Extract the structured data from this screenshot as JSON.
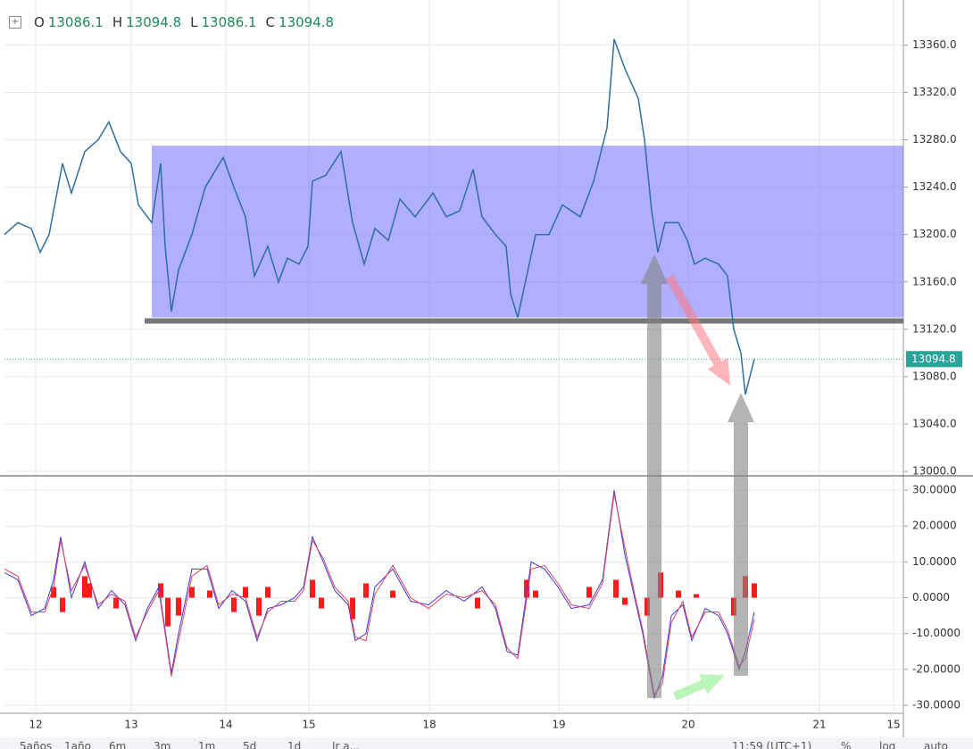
{
  "header": {
    "items": [
      {
        "key": "O",
        "value": "13086.1"
      },
      {
        "key": "H",
        "value": "13094.8"
      },
      {
        "key": "L",
        "value": "13086.1"
      },
      {
        "key": "C",
        "value": "13094.8"
      }
    ]
  },
  "toolbar": {
    "left": [
      "5años",
      "1año",
      "6m",
      "3m",
      "1m",
      "5d",
      "1d",
      "Ir a..."
    ],
    "right": [
      "11:59 (UTC+1)",
      "%",
      "log",
      "auto"
    ]
  },
  "chart_data": [
    {
      "type": "line",
      "color": "#2f6e9e",
      "xlim": [
        -3.5,
        97.2
      ],
      "x": [
        -3.5,
        -2,
        -0.5,
        0.5,
        1.5,
        3,
        4,
        5.5,
        7,
        8.2,
        9.5,
        10.7,
        11.5,
        13,
        14,
        14.5,
        15.2,
        16,
        17.5,
        19,
        21,
        22.2,
        23.5,
        24.5,
        26,
        27.2,
        28.2,
        29.5,
        30.5,
        31,
        32.5,
        34.2,
        35.5,
        36.8,
        38,
        39.5,
        40.8,
        42.5,
        44.5,
        46,
        47.5,
        49,
        50,
        51.5,
        52.7,
        53.2,
        54,
        55,
        56,
        57.5,
        59,
        61,
        62.5,
        64,
        64.8,
        66,
        67.5,
        68.2,
        69,
        69.7,
        70.5,
        72,
        73,
        73.8,
        75,
        76.5,
        77.5,
        78.2,
        79,
        79.5,
        80.5
      ],
      "values": [
        13200,
        13210,
        13205,
        13185,
        13200,
        13260,
        13235,
        13270,
        13280,
        13295,
        13270,
        13260,
        13225,
        13210,
        13260,
        13190,
        13135,
        13170,
        13200,
        13240,
        13265,
        13240,
        13215,
        13165,
        13190,
        13160,
        13180,
        13175,
        13190,
        13245,
        13250,
        13270,
        13210,
        13175,
        13205,
        13195,
        13230,
        13215,
        13235,
        13215,
        13220,
        13255,
        13215,
        13200,
        13190,
        13150,
        13130,
        13165,
        13200,
        13200,
        13225,
        13215,
        13245,
        13290,
        13365,
        13340,
        13315,
        13280,
        13220,
        13185,
        13210,
        13210,
        13195,
        13175,
        13180,
        13175,
        13165,
        13120,
        13100,
        13065,
        13094.8
      ],
      "ylim": [
        12997,
        13398
      ],
      "yticks": [
        {
          "value": 13000,
          "label": "13000.0"
        },
        {
          "value": 13040,
          "label": "13040.0"
        },
        {
          "value": 13080,
          "label": "13080.0"
        },
        {
          "value": 13120,
          "label": "13120.0"
        },
        {
          "value": 13160,
          "label": "13160.0"
        },
        {
          "value": 13200,
          "label": "13200.0"
        },
        {
          "value": 13240,
          "label": "13240.0"
        },
        {
          "value": 13280,
          "label": "13280.0"
        },
        {
          "value": 13320,
          "label": "13320.0"
        },
        {
          "value": 13360,
          "label": "13360.0"
        }
      ],
      "grid": true,
      "last_price": 13094.8,
      "last_price_color": "#26a69a",
      "range_box": {
        "x": [
          13,
          97.2
        ],
        "y": [
          13130,
          13275
        ],
        "color": "#6d6dfb"
      },
      "support_line": {
        "x": [
          12.2,
          97.2
        ],
        "y": 13127,
        "color": "#555555"
      }
    },
    {
      "type": "line",
      "xlim": [
        -3.5,
        97.2
      ],
      "xticks": [
        {
          "value": 0,
          "label": "12"
        },
        {
          "value": 10.7,
          "label": "13"
        },
        {
          "value": 21.3,
          "label": "14"
        },
        {
          "value": 30.6,
          "label": "15"
        },
        {
          "value": 44.1,
          "label": "18"
        },
        {
          "value": 58.6,
          "label": "19"
        },
        {
          "value": 73.1,
          "label": "20"
        },
        {
          "value": 87.8,
          "label": "21"
        },
        {
          "value": 96.1,
          "label": "15"
        }
      ],
      "x": [
        -3.5,
        -2,
        -0.5,
        1,
        2,
        2.8,
        4,
        5.5,
        7,
        8.5,
        10,
        11.2,
        12.5,
        13.8,
        15.2,
        16,
        17.5,
        19.2,
        20.5,
        22,
        23.5,
        24.8,
        26,
        27.5,
        29,
        30,
        31,
        32.2,
        33.5,
        35,
        35.8,
        37,
        38,
        40,
        42,
        44,
        46,
        48,
        50,
        51.5,
        52.8,
        54,
        55.5,
        57,
        58.5,
        60,
        62,
        63.5,
        64.8,
        66,
        67,
        68,
        69.3,
        70.2,
        71.2,
        72.5,
        73.5,
        75,
        76.5,
        77.5,
        78.8,
        79.5,
        80.5
      ],
      "series": [
        {
          "color": "#3b3bdc",
          "values": [
            7,
            5,
            -5,
            -3,
            5,
            17,
            0,
            10,
            -3,
            2,
            -2,
            -12,
            -3,
            3,
            -21,
            -10,
            8,
            8,
            -3,
            2,
            -1,
            -12,
            -3,
            -2,
            0,
            3,
            17,
            10,
            2,
            -2,
            -12,
            -10,
            3,
            8,
            -1,
            -2,
            2,
            -1,
            3,
            -3,
            -15,
            -16,
            10,
            8,
            3,
            -3,
            -2,
            5,
            30,
            12,
            1,
            -10,
            -28,
            -22,
            -5,
            -2,
            -12,
            -3,
            -5,
            -10,
            -20,
            -15,
            -4
          ]
        },
        {
          "color": "#e0405a",
          "values": [
            8,
            6,
            -4,
            -4,
            3,
            16,
            2,
            9,
            -2,
            1,
            -1,
            -11,
            -4,
            2,
            -22,
            -12,
            6,
            9,
            -2,
            1,
            0,
            -11,
            -4,
            -1,
            -1,
            2,
            16,
            11,
            3,
            -1,
            -11,
            -12,
            1,
            9,
            0,
            -3,
            1,
            0,
            2,
            -2,
            -14,
            -17,
            8,
            9,
            4,
            -2,
            -3,
            4,
            29,
            14,
            2,
            -9,
            -27,
            -24,
            -7,
            -1,
            -11,
            -4,
            -4,
            -9,
            -19,
            -17,
            -6
          ]
        }
      ],
      "histogram": {
        "color": "#ff1a1a",
        "x": [
          2,
          3,
          5.5,
          6,
          9,
          14,
          14.8,
          16,
          17.5,
          19.5,
          22.2,
          23.5,
          25,
          26,
          31,
          32,
          35.5,
          37,
          40,
          49.5,
          55,
          56,
          62,
          65,
          66,
          68.5,
          70,
          72,
          74,
          78.2,
          79.5,
          80.5
        ],
        "values": [
          3,
          -4,
          6,
          4,
          -3,
          4,
          -8,
          -5,
          3,
          2,
          -4,
          3,
          -5,
          3,
          5,
          -3,
          -6,
          4,
          2,
          -3,
          5,
          2,
          3,
          5,
          -2,
          -5,
          7,
          2,
          1,
          -5,
          6,
          4
        ]
      },
      "ylim": [
        -32,
        33.5
      ],
      "yticks": [
        {
          "value": -30,
          "label": "-30.0000"
        },
        {
          "value": -20,
          "label": "-20.0000"
        },
        {
          "value": -10,
          "label": "-10.0000"
        },
        {
          "value": 0,
          "label": "0.0000"
        },
        {
          "value": 10,
          "label": "10.0000"
        },
        {
          "value": 20,
          "label": "20.0000"
        },
        {
          "value": 30,
          "label": "30.0000"
        }
      ],
      "grid": true
    }
  ]
}
